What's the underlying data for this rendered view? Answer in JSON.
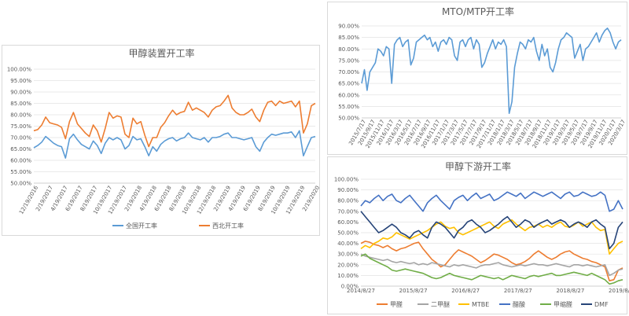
{
  "chart_data": [
    {
      "id": "a",
      "type": "line",
      "title": "甲醇装置开工率",
      "ylim": [
        0.5,
        1.0
      ],
      "y_ticks": [
        "100.00%",
        "95.00%",
        "90.00%",
        "85.00%",
        "80.00%",
        "75.00%",
        "70.00%",
        "65.00%",
        "60.00%",
        "55.00%",
        "50.00%"
      ],
      "x_ticks": [
        "12/19/2016",
        "2/19/2017",
        "4/19/2017",
        "6/19/2017",
        "8/19/2017",
        "10/19/2017",
        "12/19/2017",
        "2/19/2018",
        "4/19/2018",
        "6/19/2018",
        "8/19/2018",
        "10/19/2018",
        "12/19/2018",
        "2/19/2019",
        "4/19/2019",
        "6/19/2019",
        "8/19/2019",
        "10/19/2019",
        "12/19/2019",
        "2/19/2020"
      ],
      "series": [
        {
          "name": "全国开工率",
          "color": "#5b9bd5",
          "values": [
            0.655,
            0.665,
            0.68,
            0.705,
            0.69,
            0.675,
            0.665,
            0.66,
            0.61,
            0.695,
            0.715,
            0.69,
            0.67,
            0.66,
            0.65,
            0.685,
            0.665,
            0.63,
            0.675,
            0.7,
            0.69,
            0.7,
            0.69,
            0.65,
            0.665,
            0.705,
            0.69,
            0.695,
            0.66,
            0.62,
            0.66,
            0.64,
            0.67,
            0.685,
            0.695,
            0.7,
            0.685,
            0.695,
            0.7,
            0.72,
            0.7,
            0.695,
            0.69,
            0.7,
            0.68,
            0.7,
            0.7,
            0.705,
            0.715,
            0.72,
            0.7,
            0.7,
            0.695,
            0.69,
            0.695,
            0.7,
            0.66,
            0.64,
            0.68,
            0.7,
            0.715,
            0.71,
            0.715,
            0.72,
            0.72,
            0.725,
            0.7,
            0.73,
            0.62,
            0.66,
            0.7,
            0.705
          ]
        },
        {
          "name": "西北开工率",
          "color": "#ed7d31",
          "values": [
            0.73,
            0.735,
            0.755,
            0.79,
            0.765,
            0.76,
            0.755,
            0.745,
            0.695,
            0.77,
            0.81,
            0.76,
            0.74,
            0.72,
            0.705,
            0.755,
            0.73,
            0.68,
            0.74,
            0.81,
            0.785,
            0.795,
            0.79,
            0.715,
            0.7,
            0.785,
            0.76,
            0.77,
            0.71,
            0.66,
            0.7,
            0.7,
            0.745,
            0.765,
            0.795,
            0.82,
            0.8,
            0.81,
            0.815,
            0.855,
            0.82,
            0.83,
            0.82,
            0.81,
            0.79,
            0.82,
            0.835,
            0.84,
            0.86,
            0.885,
            0.83,
            0.81,
            0.8,
            0.8,
            0.81,
            0.825,
            0.79,
            0.77,
            0.82,
            0.855,
            0.86,
            0.84,
            0.86,
            0.85,
            0.855,
            0.86,
            0.835,
            0.86,
            0.72,
            0.76,
            0.84,
            0.85
          ]
        }
      ]
    },
    {
      "id": "b",
      "type": "line",
      "title": "MTO/MTP开工率",
      "ylim": [
        0.5,
        0.9
      ],
      "y_ticks": [
        "90.00%",
        "85.00%",
        "80.00%",
        "75.00%",
        "70.00%",
        "65.00%",
        "60.00%",
        "55.00%",
        "50.00%"
      ],
      "x_ticks": [
        "2015/7/17",
        "2015/9/17",
        "2015/11/17",
        "2016/1/17",
        "2016/3/17",
        "2016/5/17",
        "2016/7/17",
        "2016/9/17",
        "2016/11/17",
        "2017/1/17",
        "2017/3/17",
        "2017/5/17",
        "2017/7/17",
        "2017/9/17",
        "2017/11/17",
        "2018/1/17",
        "2018/3/17",
        "2018/5/17",
        "2018/7/17",
        "2018/9/17",
        "2018/11/17",
        "2019/1/17",
        "2019/3/17",
        "2019/5/17",
        "2019/7/17",
        "2019/9/17",
        "2019/11/17",
        "2020/1/17",
        "2020/3/17"
      ],
      "series": [
        {
          "name": "MTO/MTP开工率",
          "color": "#5b9bd5",
          "values": [
            0.65,
            0.71,
            0.62,
            0.7,
            0.72,
            0.74,
            0.8,
            0.79,
            0.77,
            0.81,
            0.8,
            0.65,
            0.82,
            0.84,
            0.85,
            0.81,
            0.83,
            0.84,
            0.73,
            0.76,
            0.83,
            0.84,
            0.85,
            0.86,
            0.84,
            0.85,
            0.81,
            0.83,
            0.79,
            0.83,
            0.84,
            0.82,
            0.85,
            0.84,
            0.77,
            0.75,
            0.83,
            0.84,
            0.81,
            0.84,
            0.85,
            0.8,
            0.84,
            0.82,
            0.72,
            0.74,
            0.78,
            0.81,
            0.84,
            0.8,
            0.83,
            0.82,
            0.84,
            0.81,
            0.52,
            0.57,
            0.72,
            0.78,
            0.83,
            0.82,
            0.8,
            0.84,
            0.83,
            0.85,
            0.79,
            0.75,
            0.82,
            0.77,
            0.8,
            0.72,
            0.7,
            0.74,
            0.8,
            0.84,
            0.85,
            0.87,
            0.86,
            0.85,
            0.76,
            0.79,
            0.82,
            0.75,
            0.8,
            0.81,
            0.83,
            0.85,
            0.87,
            0.83,
            0.86,
            0.88,
            0.89,
            0.87,
            0.83,
            0.8,
            0.83,
            0.84
          ]
        }
      ]
    },
    {
      "id": "c",
      "type": "line",
      "title": "甲醇下游开工率",
      "ylim": [
        0.0,
        1.0
      ],
      "y_ticks": [
        "100.00%",
        "90.00%",
        "80.00%",
        "70.00%",
        "60.00%",
        "50.00%",
        "40.00%",
        "30.00%",
        "20.00%",
        "10.00%",
        "0.00%"
      ],
      "x_ticks": [
        "2014/8/27",
        "2015/8/27",
        "2016/8/27",
        "2017/8/27",
        "2018/8/27",
        "2019/8/27"
      ],
      "series": [
        {
          "name": "甲醛",
          "color": "#ed7d31",
          "values": [
            0.4,
            0.42,
            0.41,
            0.39,
            0.38,
            0.36,
            0.38,
            0.35,
            0.33,
            0.35,
            0.36,
            0.38,
            0.4,
            0.41,
            0.35,
            0.3,
            0.25,
            0.22,
            0.18,
            0.2,
            0.25,
            0.3,
            0.34,
            0.32,
            0.3,
            0.28,
            0.25,
            0.22,
            0.24,
            0.27,
            0.3,
            0.29,
            0.27,
            0.25,
            0.22,
            0.2,
            0.21,
            0.23,
            0.26,
            0.3,
            0.33,
            0.3,
            0.27,
            0.25,
            0.27,
            0.3,
            0.32,
            0.33,
            0.3,
            0.28,
            0.26,
            0.25,
            0.23,
            0.22,
            0.2,
            0.18,
            0.05,
            0.06,
            0.15,
            0.17
          ]
        },
        {
          "name": "二甲醚",
          "color": "#a5a5a5",
          "values": [
            0.3,
            0.28,
            0.27,
            0.26,
            0.25,
            0.24,
            0.25,
            0.23,
            0.22,
            0.23,
            0.22,
            0.21,
            0.22,
            0.2,
            0.21,
            0.2,
            0.22,
            0.21,
            0.2,
            0.19,
            0.18,
            0.2,
            0.19,
            0.2,
            0.19,
            0.18,
            0.17,
            0.19,
            0.2,
            0.2,
            0.21,
            0.22,
            0.2,
            0.19,
            0.18,
            0.19,
            0.2,
            0.19,
            0.2,
            0.21,
            0.2,
            0.2,
            0.19,
            0.2,
            0.21,
            0.2,
            0.19,
            0.18,
            0.2,
            0.2,
            0.19,
            0.2,
            0.19,
            0.18,
            0.19,
            0.2,
            0.1,
            0.12,
            0.15,
            0.16
          ]
        },
        {
          "name": "MTBE",
          "color": "#ffc000",
          "values": [
            0.35,
            0.38,
            0.36,
            0.4,
            0.42,
            0.45,
            0.44,
            0.46,
            0.5,
            0.48,
            0.46,
            0.44,
            0.46,
            0.48,
            0.5,
            0.52,
            0.55,
            0.58,
            0.6,
            0.56,
            0.54,
            0.55,
            0.5,
            0.48,
            0.5,
            0.52,
            0.54,
            0.56,
            0.58,
            0.6,
            0.56,
            0.54,
            0.58,
            0.6,
            0.62,
            0.58,
            0.55,
            0.52,
            0.55,
            0.56,
            0.58,
            0.55,
            0.57,
            0.55,
            0.58,
            0.6,
            0.56,
            0.55,
            0.57,
            0.6,
            0.56,
            0.58,
            0.6,
            0.55,
            0.52,
            0.53,
            0.3,
            0.35,
            0.4,
            0.42
          ]
        },
        {
          "name": "醋酸",
          "color": "#4472c4",
          "values": [
            0.75,
            0.8,
            0.78,
            0.82,
            0.85,
            0.8,
            0.84,
            0.86,
            0.8,
            0.78,
            0.82,
            0.85,
            0.8,
            0.75,
            0.7,
            0.78,
            0.82,
            0.85,
            0.8,
            0.76,
            0.72,
            0.8,
            0.83,
            0.85,
            0.8,
            0.84,
            0.87,
            0.82,
            0.84,
            0.86,
            0.8,
            0.82,
            0.85,
            0.88,
            0.86,
            0.84,
            0.87,
            0.82,
            0.85,
            0.88,
            0.86,
            0.84,
            0.86,
            0.88,
            0.85,
            0.82,
            0.86,
            0.88,
            0.84,
            0.85,
            0.88,
            0.86,
            0.84,
            0.85,
            0.88,
            0.85,
            0.7,
            0.72,
            0.8,
            0.72
          ]
        },
        {
          "name": "甲缩醛",
          "color": "#70ad47",
          "values": [
            0.28,
            0.3,
            0.26,
            0.24,
            0.22,
            0.2,
            0.18,
            0.15,
            0.14,
            0.15,
            0.16,
            0.15,
            0.14,
            0.13,
            0.12,
            0.1,
            0.08,
            0.07,
            0.08,
            0.1,
            0.12,
            0.1,
            0.09,
            0.08,
            0.07,
            0.06,
            0.08,
            0.1,
            0.09,
            0.08,
            0.07,
            0.08,
            0.06,
            0.08,
            0.1,
            0.09,
            0.08,
            0.07,
            0.09,
            0.1,
            0.09,
            0.1,
            0.11,
            0.12,
            0.1,
            0.1,
            0.11,
            0.12,
            0.13,
            0.12,
            0.11,
            0.1,
            0.12,
            0.1,
            0.08,
            0.06,
            0.02,
            0.03,
            0.05,
            0.06
          ]
        },
        {
          "name": "DMF",
          "color": "#264478",
          "values": [
            0.7,
            0.65,
            0.6,
            0.55,
            0.5,
            0.52,
            0.55,
            0.58,
            0.55,
            0.5,
            0.48,
            0.45,
            0.5,
            0.52,
            0.48,
            0.45,
            0.55,
            0.6,
            0.58,
            0.55,
            0.5,
            0.45,
            0.52,
            0.55,
            0.6,
            0.62,
            0.58,
            0.55,
            0.5,
            0.52,
            0.55,
            0.58,
            0.62,
            0.65,
            0.6,
            0.55,
            0.58,
            0.62,
            0.6,
            0.55,
            0.58,
            0.6,
            0.62,
            0.58,
            0.6,
            0.62,
            0.6,
            0.55,
            0.58,
            0.6,
            0.58,
            0.55,
            0.6,
            0.62,
            0.58,
            0.55,
            0.35,
            0.4,
            0.55,
            0.6
          ]
        }
      ]
    }
  ]
}
